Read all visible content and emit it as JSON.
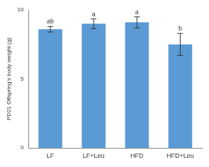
{
  "chart_data": {
    "type": "bar",
    "y_label": "PD21 Offspring's body weight (g)",
    "categories": [
      "LF",
      "LF+Leu",
      "HFD",
      "HFD+Leu"
    ],
    "values": [
      8.6,
      9.0,
      9.1,
      7.5
    ],
    "errors": [
      0.2,
      0.35,
      0.4,
      0.8
    ],
    "annotations": [
      "ab",
      "a",
      "a",
      "b"
    ],
    "color": "#5b9bd5",
    "ylim": [
      0,
      10
    ],
    "yticks": [
      0,
      5,
      10
    ],
    "grid": false
  }
}
